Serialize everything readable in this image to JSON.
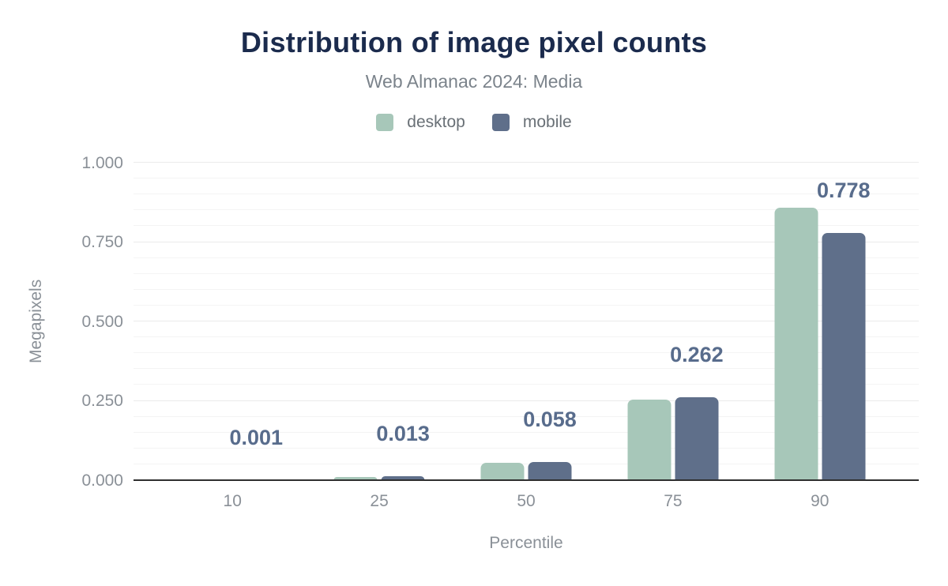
{
  "chart_data": {
    "type": "bar",
    "title": "Distribution of image pixel counts",
    "subtitle": "Web Almanac 2024: Media",
    "xlabel": "Percentile",
    "ylabel": "Megapixels",
    "categories": [
      "10",
      "25",
      "50",
      "75",
      "90"
    ],
    "series": [
      {
        "name": "desktop",
        "color": "#a7c7b9",
        "values": [
          0.001,
          0.01,
          0.055,
          0.254,
          0.858
        ]
      },
      {
        "name": "mobile",
        "color": "#5f6f8a",
        "values": [
          0.001,
          0.013,
          0.058,
          0.262,
          0.778
        ]
      }
    ],
    "value_labels": {
      "labeled_series": "mobile",
      "texts": [
        "0.001",
        "0.013",
        "0.058",
        "0.262",
        "0.778"
      ]
    },
    "ylim": [
      0,
      1.0
    ],
    "yticks": [
      {
        "value": 0.0,
        "label": "0.000"
      },
      {
        "value": 0.25,
        "label": "0.250"
      },
      {
        "value": 0.5,
        "label": "0.500"
      },
      {
        "value": 0.75,
        "label": "0.750"
      },
      {
        "value": 1.0,
        "label": "1.000"
      }
    ],
    "minor_grid_step": 0.05,
    "grid": true,
    "legend_position": "top"
  },
  "colors": {
    "background": "#ffffff",
    "title": "#1b2b4d",
    "subtitle": "#7b838b",
    "legend_text": "#697076",
    "axis_text": "#8a9097",
    "value_label": "#586c8c",
    "axis_line": "#2f2f2f",
    "grid_minor": "#f4f4f4",
    "grid_major": "#ebebeb"
  }
}
